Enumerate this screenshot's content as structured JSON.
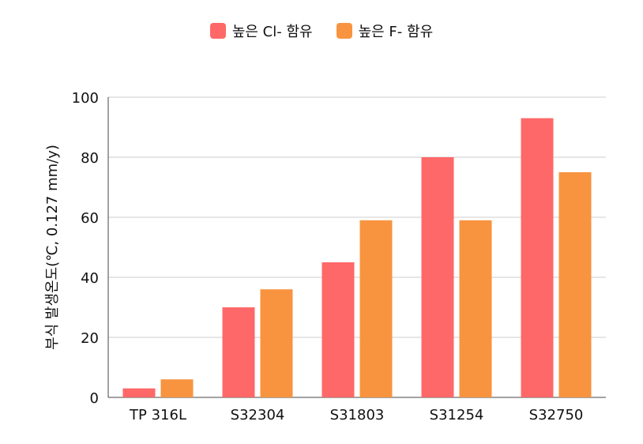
{
  "chart_data": {
    "type": "bar",
    "categories": [
      "TP 316L",
      "S32304",
      "S31803",
      "S31254",
      "S32750"
    ],
    "series": [
      {
        "name": "높은 Cl- 함유",
        "values": [
          3,
          30,
          45,
          80,
          93
        ],
        "color": "#ff6868"
      },
      {
        "name": "높은 F- 함유",
        "values": [
          6,
          36,
          59,
          59,
          75
        ],
        "color": "#f8943f"
      }
    ],
    "ylabel": "부식 발생온도(℃, 0.127 mm/y)",
    "xlabel": "",
    "ylim": [
      0,
      100
    ],
    "yticks": [
      0,
      20,
      40,
      60,
      80,
      100
    ],
    "grid": true,
    "legend_position": "top-center"
  }
}
